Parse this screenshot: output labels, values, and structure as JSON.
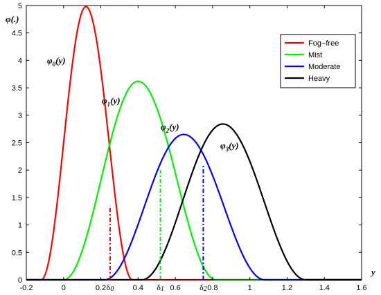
{
  "chart_data": {
    "type": "line",
    "xlim": [
      -0.2,
      1.6
    ],
    "ylim": [
      0,
      5
    ],
    "x_ticks": [
      "-0.2",
      "0",
      "0.2",
      "0.4",
      "0.6",
      "0.8",
      "1",
      "1.2",
      "1.4",
      "1.6"
    ],
    "y_ticks": [
      "0",
      "0.5",
      "1",
      "1.5",
      "2",
      "2.5",
      "3",
      "3.5",
      "4",
      "4.5",
      "5"
    ],
    "xlabel": "y",
    "ylabel": "φ(.)",
    "legend_position": "top-right",
    "grid": false,
    "series": [
      {
        "name": "Fog−free",
        "label": "φ0(y)",
        "color": "#ff0000",
        "mean": 0.12,
        "peak": 4.98,
        "support": [
          -0.12,
          0.37
        ]
      },
      {
        "name": "Mist",
        "label": "φ1(y)",
        "color": "#00ee00",
        "mean": 0.4,
        "peak": 3.62,
        "support": [
          0.0,
          0.82
        ]
      },
      {
        "name": "Moderate",
        "label": "φ2(y)",
        "color": "#0000ee",
        "mean": 0.645,
        "peak": 2.65,
        "support": [
          0.22,
          1.08
        ]
      },
      {
        "name": "Heavy",
        "label": "φ3(y)",
        "color": "#000000",
        "mean": 0.855,
        "peak": 2.84,
        "support": [
          0.42,
          1.3
        ]
      }
    ],
    "thresholds": [
      {
        "label": "δ0",
        "x": 0.25,
        "y": 1.35,
        "color": "#ff0000"
      },
      {
        "label": "δ1",
        "x": 0.52,
        "y": 2.0,
        "color": "#00ee00"
      },
      {
        "label": "δ2",
        "x": 0.75,
        "y": 2.1,
        "color": "#0000ee"
      }
    ]
  }
}
